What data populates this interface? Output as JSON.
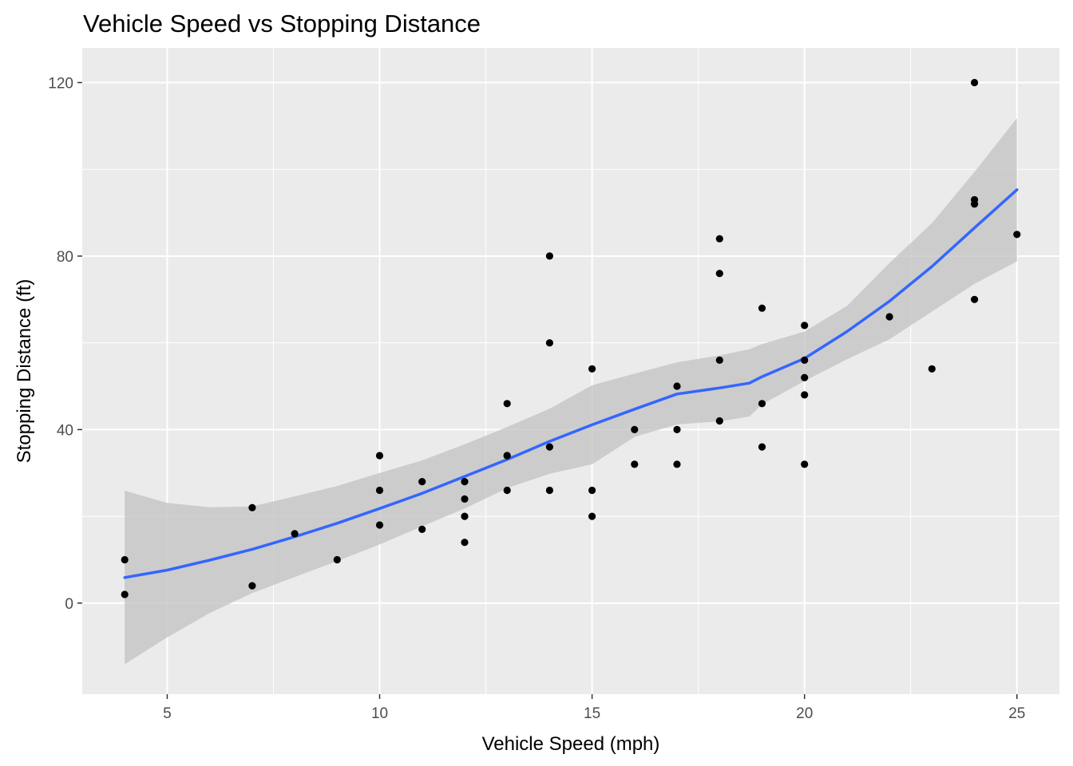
{
  "chart_data": {
    "type": "scatter",
    "title": "Vehicle Speed vs Stopping Distance",
    "xlabel": "Vehicle Speed (mph)",
    "ylabel": "Stopping Distance (ft)",
    "xlim": [
      3,
      26
    ],
    "ylim": [
      -21,
      128
    ],
    "x_ticks": [
      5,
      10,
      15,
      20,
      25
    ],
    "y_ticks": [
      0,
      40,
      80,
      120
    ],
    "grid": true,
    "legend": "none",
    "colors": {
      "panel_background": "#ebebeb",
      "grid": "#ffffff",
      "points": "#000000",
      "smooth_line": "#3366ff",
      "confidence_band": "#bfbfbf"
    },
    "series": [
      {
        "type": "points",
        "x": [
          4,
          4,
          7,
          7,
          8,
          9,
          10,
          10,
          10,
          11,
          11,
          12,
          12,
          12,
          12,
          13,
          13,
          13,
          13,
          14,
          14,
          14,
          14,
          15,
          15,
          15,
          16,
          16,
          17,
          17,
          17,
          18,
          18,
          18,
          18,
          19,
          19,
          19,
          20,
          20,
          20,
          20,
          20,
          22,
          23,
          24,
          24,
          24,
          24,
          25
        ],
        "y": [
          2,
          10,
          4,
          22,
          16,
          10,
          18,
          26,
          34,
          17,
          28,
          14,
          20,
          24,
          28,
          26,
          34,
          34,
          46,
          26,
          36,
          60,
          80,
          20,
          26,
          54,
          32,
          40,
          32,
          40,
          50,
          42,
          56,
          76,
          84,
          36,
          46,
          68,
          32,
          48,
          52,
          56,
          64,
          66,
          54,
          70,
          92,
          93,
          120,
          85
        ]
      },
      {
        "type": "smooth",
        "method": "loess",
        "x": [
          4,
          5,
          6,
          7,
          8,
          9,
          10,
          11,
          12,
          13,
          14,
          15,
          16,
          17,
          18,
          18.7,
          19,
          20,
          21,
          22,
          23,
          24,
          25
        ],
        "fit": [
          5.9,
          7.6,
          9.9,
          12.4,
          15.3,
          18.4,
          21.8,
          25.3,
          29.2,
          33.1,
          37.3,
          41.1,
          44.7,
          48.2,
          49.6,
          50.7,
          52.2,
          56.4,
          62.6,
          69.6,
          77.6,
          86.5,
          95.3
        ],
        "lower": [
          -14.1,
          -7.9,
          -2.3,
          2.3,
          6.0,
          9.7,
          13.5,
          17.7,
          21.8,
          26.5,
          29.8,
          32.0,
          38.3,
          41.2,
          41.9,
          43.0,
          45.8,
          51.2,
          56.2,
          60.8,
          67.2,
          73.6,
          78.8
        ],
        "upper": [
          25.9,
          23.1,
          22.1,
          22.3,
          24.6,
          27.0,
          30.0,
          32.9,
          36.6,
          40.6,
          44.8,
          50.2,
          52.9,
          55.5,
          57.1,
          58.5,
          59.7,
          62.6,
          68.5,
          78.4,
          87.6,
          99.4,
          111.8
        ]
      }
    ]
  }
}
